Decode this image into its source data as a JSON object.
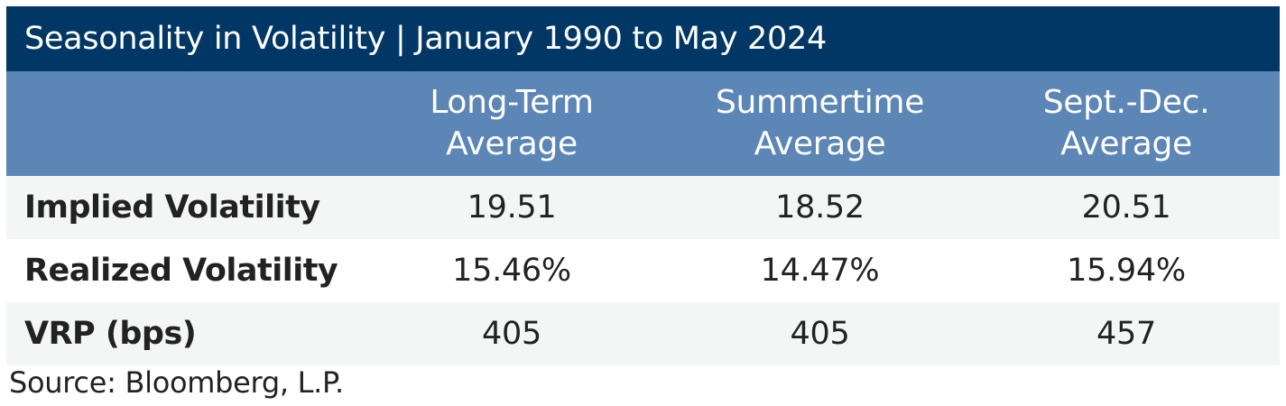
{
  "chart_data": {
    "type": "table",
    "title": "Seasonality in Volatility | January 1990 to May 2024",
    "columns": [
      [
        "Long-Term",
        "Average"
      ],
      [
        "Summertime",
        "Average"
      ],
      [
        "Sept.-Dec.",
        "Average"
      ]
    ],
    "rows": [
      {
        "label": "Implied Volatility",
        "values": [
          "19.51",
          "18.52",
          "20.51"
        ]
      },
      {
        "label": "Realized Volatility",
        "values": [
          "15.46%",
          "14.47%",
          "15.94%"
        ]
      },
      {
        "label": "VRP (bps)",
        "values": [
          "405",
          "405",
          "457"
        ]
      }
    ],
    "source": "Source: Bloomberg, L.P."
  },
  "colors": {
    "title_background": "#003764",
    "header_background": "#5b86b6",
    "shaded_row": "#f4f5f5"
  }
}
